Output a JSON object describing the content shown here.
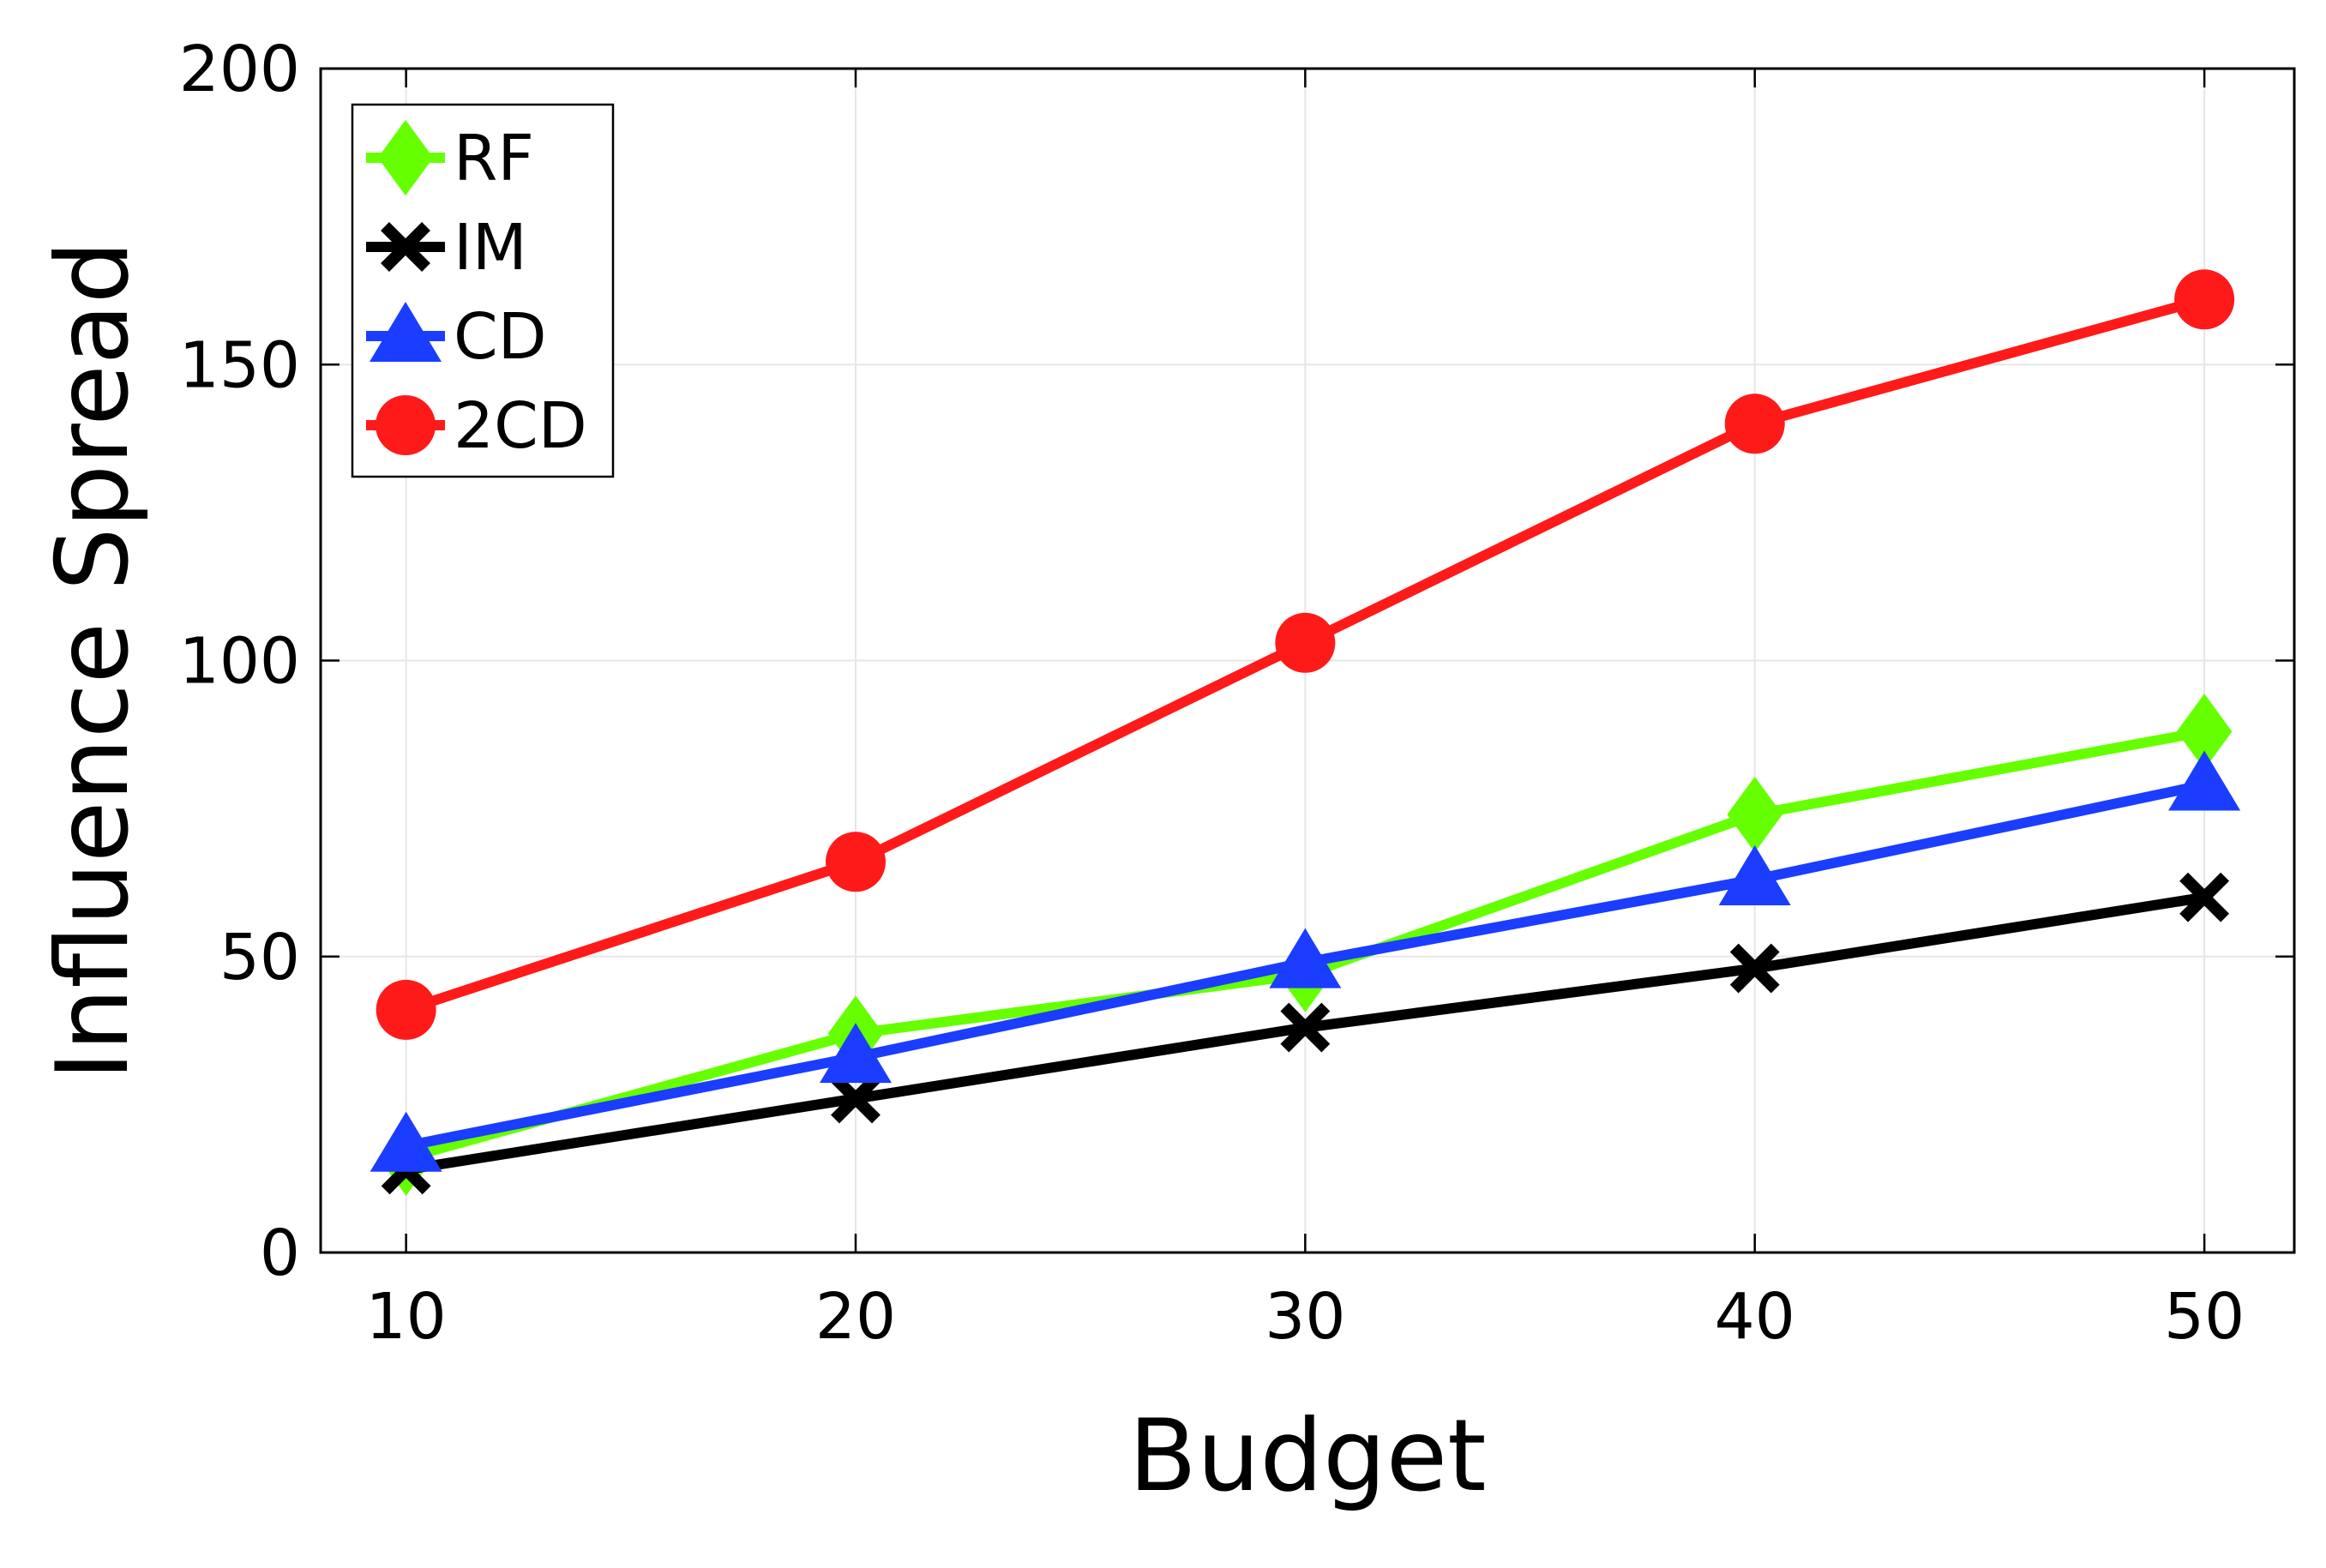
{
  "chart_data": {
    "type": "line",
    "title": "",
    "xlabel": "Budget",
    "ylabel": "Influence Spread",
    "xlim": [
      8.1,
      52.0
    ],
    "ylim": [
      0,
      200
    ],
    "x_ticks": [
      10,
      20,
      30,
      40,
      50
    ],
    "y_ticks": [
      0,
      50,
      100,
      150,
      200
    ],
    "grid": true,
    "legend_position": "top-left",
    "series": [
      {
        "name": "RF",
        "color": "#66ff00",
        "marker": "diamond",
        "x": [
          10,
          20,
          30,
          40,
          50
        ],
        "y": [
          16,
          37,
          47,
          74,
          88
        ]
      },
      {
        "name": "IM",
        "color": "#000000",
        "marker": "x",
        "x": [
          10,
          20,
          30,
          40,
          50
        ],
        "y": [
          14,
          26,
          38,
          48,
          60
        ]
      },
      {
        "name": "CD",
        "color": "#1a3dff",
        "marker": "triangle",
        "x": [
          10,
          20,
          30,
          40,
          50
        ],
        "y": [
          18,
          33,
          49,
          63,
          79
        ]
      },
      {
        "name": "2CD",
        "color": "#ff1a1a",
        "marker": "circle",
        "x": [
          10,
          20,
          30,
          40,
          50
        ],
        "y": [
          41,
          66,
          103,
          140,
          161
        ]
      }
    ]
  }
}
